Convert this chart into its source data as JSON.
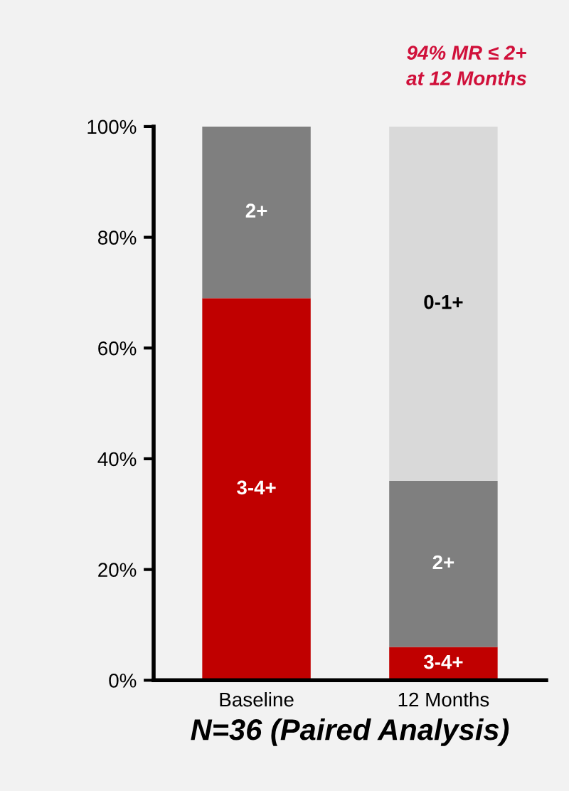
{
  "chart_data": {
    "type": "bar",
    "stacked": true,
    "categories": [
      "Baseline",
      "12 Months"
    ],
    "series": [
      {
        "name": "3-4+",
        "color": "#c00000",
        "values": [
          69,
          6
        ]
      },
      {
        "name": "2+",
        "color": "#7f7f7f",
        "values": [
          31,
          30
        ]
      },
      {
        "name": "0-1+",
        "color": "#d9d9d9",
        "values": [
          0,
          64
        ]
      }
    ],
    "ylim": [
      0,
      100
    ],
    "yticks": [
      {
        "value": 0,
        "label": "0%"
      },
      {
        "value": 20,
        "label": "20%"
      },
      {
        "value": 40,
        "label": "40%"
      },
      {
        "value": 60,
        "label": "60%"
      },
      {
        "value": 80,
        "label": "80%"
      },
      {
        "value": 100,
        "label": "100%"
      }
    ],
    "xlabel": "N=36 (Paired Analysis)",
    "annotations": [
      "94% MR ≤ 2+\nat 12 Months"
    ]
  }
}
